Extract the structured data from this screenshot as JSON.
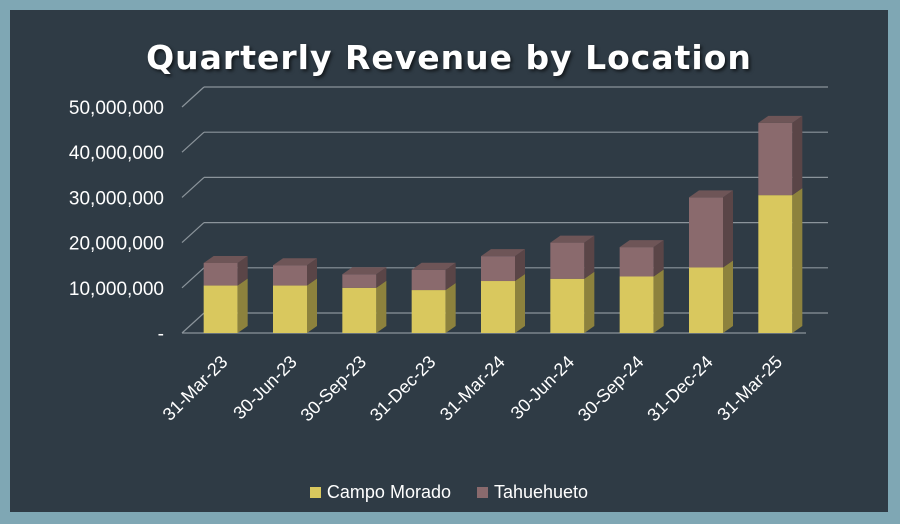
{
  "chart_data": {
    "type": "bar",
    "stacked": true,
    "style": "3d",
    "title": "Quarterly Revenue by Location",
    "categories": [
      "31-Mar-23",
      "30-Jun-23",
      "30-Sep-23",
      "31-Dec-23",
      "31-Mar-24",
      "30-Jun-24",
      "30-Sep-24",
      "31-Dec-24",
      "31-Mar-25"
    ],
    "series": [
      {
        "name": "Campo Morado",
        "color": "#d9c85e",
        "values": [
          10500000,
          10500000,
          10000000,
          9500000,
          11500000,
          12000000,
          12500000,
          14500000,
          30500000
        ]
      },
      {
        "name": "Tahuehueto",
        "color": "#8a6a6d",
        "values": [
          5000000,
          4500000,
          3000000,
          4500000,
          5500000,
          8000000,
          6500000,
          15500000,
          16000000
        ]
      }
    ],
    "ylim": [
      0,
      50000000
    ],
    "yticks": [
      "-",
      "10,000,000",
      "20,000,000",
      "30,000,000",
      "40,000,000",
      "50,000,000"
    ],
    "grid": true,
    "legend": "bottom"
  }
}
